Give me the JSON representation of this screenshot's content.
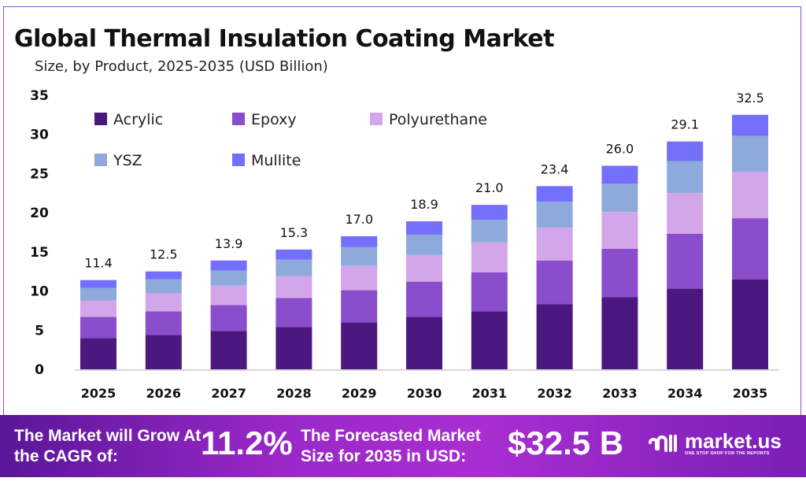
{
  "header": {
    "title": "Global Thermal Insulation Coating Market",
    "subtitle": "Size, by Product, 2025-2035 (USD Billion)"
  },
  "chart_data": {
    "type": "bar",
    "stacked": true,
    "categories": [
      "2025",
      "2026",
      "2027",
      "2028",
      "2029",
      "2030",
      "2031",
      "2032",
      "2033",
      "2034",
      "2035"
    ],
    "series": [
      {
        "name": "Acrylic",
        "color": "#4b1880",
        "values": [
          4.0,
          4.4,
          4.9,
          5.4,
          6.0,
          6.7,
          7.4,
          8.3,
          9.2,
          10.3,
          11.5
        ]
      },
      {
        "name": "Epoxy",
        "color": "#8a4dcc",
        "values": [
          2.7,
          3.0,
          3.3,
          3.7,
          4.1,
          4.5,
          5.0,
          5.6,
          6.2,
          7.0,
          7.8
        ]
      },
      {
        "name": "Polyurethane",
        "color": "#d3a6ea",
        "values": [
          2.1,
          2.3,
          2.5,
          2.8,
          3.1,
          3.4,
          3.8,
          4.2,
          4.7,
          5.2,
          5.9
        ]
      },
      {
        "name": "YSZ",
        "color": "#8eaadc",
        "values": [
          1.6,
          1.8,
          1.9,
          2.1,
          2.4,
          2.6,
          2.9,
          3.3,
          3.6,
          4.1,
          4.6
        ]
      },
      {
        "name": "Mullite",
        "color": "#7470fb",
        "values": [
          1.0,
          1.0,
          1.3,
          1.3,
          1.4,
          1.7,
          1.9,
          2.0,
          2.3,
          2.5,
          2.7
        ]
      }
    ],
    "totals": [
      "11.4",
      "12.5",
      "13.9",
      "15.3",
      "17.0",
      "18.9",
      "21.0",
      "23.4",
      "26.0",
      "29.1",
      "32.5"
    ],
    "yticks": [
      "0",
      "5",
      "10",
      "15",
      "20",
      "25",
      "30",
      "35"
    ],
    "ylim": [
      0,
      35
    ],
    "grid": false,
    "legend": "top-left"
  },
  "banner": {
    "cagr_label": "The Market will Grow At the CAGR of:",
    "cagr_value": "11.2%",
    "forecast_label": "The Forecasted Market Size for 2035 in USD:",
    "forecast_value": "$32.5 B",
    "logo_text": "market.us",
    "logo_tagline": "ONE STOP SHOP FOR THE REPORTS"
  }
}
